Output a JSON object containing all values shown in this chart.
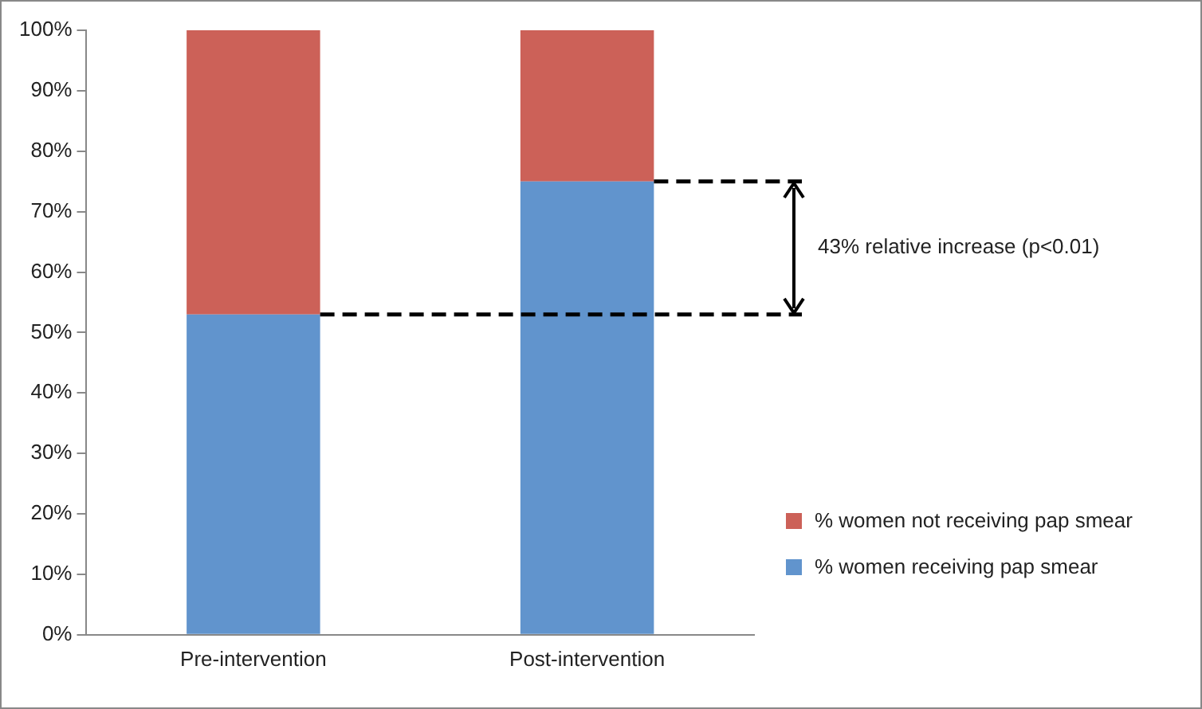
{
  "chart_data": {
    "type": "bar",
    "stacked": true,
    "categories": [
      "Pre-intervention",
      "Post-intervention"
    ],
    "series": [
      {
        "name": "% women receiving pap smear",
        "color": "#6194cd",
        "values": [
          53,
          75
        ]
      },
      {
        "name": "% women not receiving pap smear",
        "color": "#cc6158",
        "values": [
          47,
          25
        ]
      }
    ],
    "ylim": [
      0,
      100
    ],
    "yticks": [
      {
        "value": 0,
        "label": "0%"
      },
      {
        "value": 10,
        "label": "10%"
      },
      {
        "value": 20,
        "label": "20%"
      },
      {
        "value": 30,
        "label": "30%"
      },
      {
        "value": 40,
        "label": "40%"
      },
      {
        "value": 50,
        "label": "50%"
      },
      {
        "value": 60,
        "label": "60%"
      },
      {
        "value": 70,
        "label": "70%"
      },
      {
        "value": 80,
        "label": "80%"
      },
      {
        "value": 90,
        "label": "90%"
      },
      {
        "value": 100,
        "label": "100%"
      }
    ],
    "ref_lines": [
      {
        "axis": "y",
        "value": 53,
        "color": "#000000",
        "line_style": "dashed"
      },
      {
        "axis": "y",
        "value": 75,
        "color": "#000000",
        "line_style": "dashed"
      }
    ],
    "annotations": [
      "43% relative increase (p<0.01)"
    ],
    "grid": false,
    "legend": "right"
  }
}
